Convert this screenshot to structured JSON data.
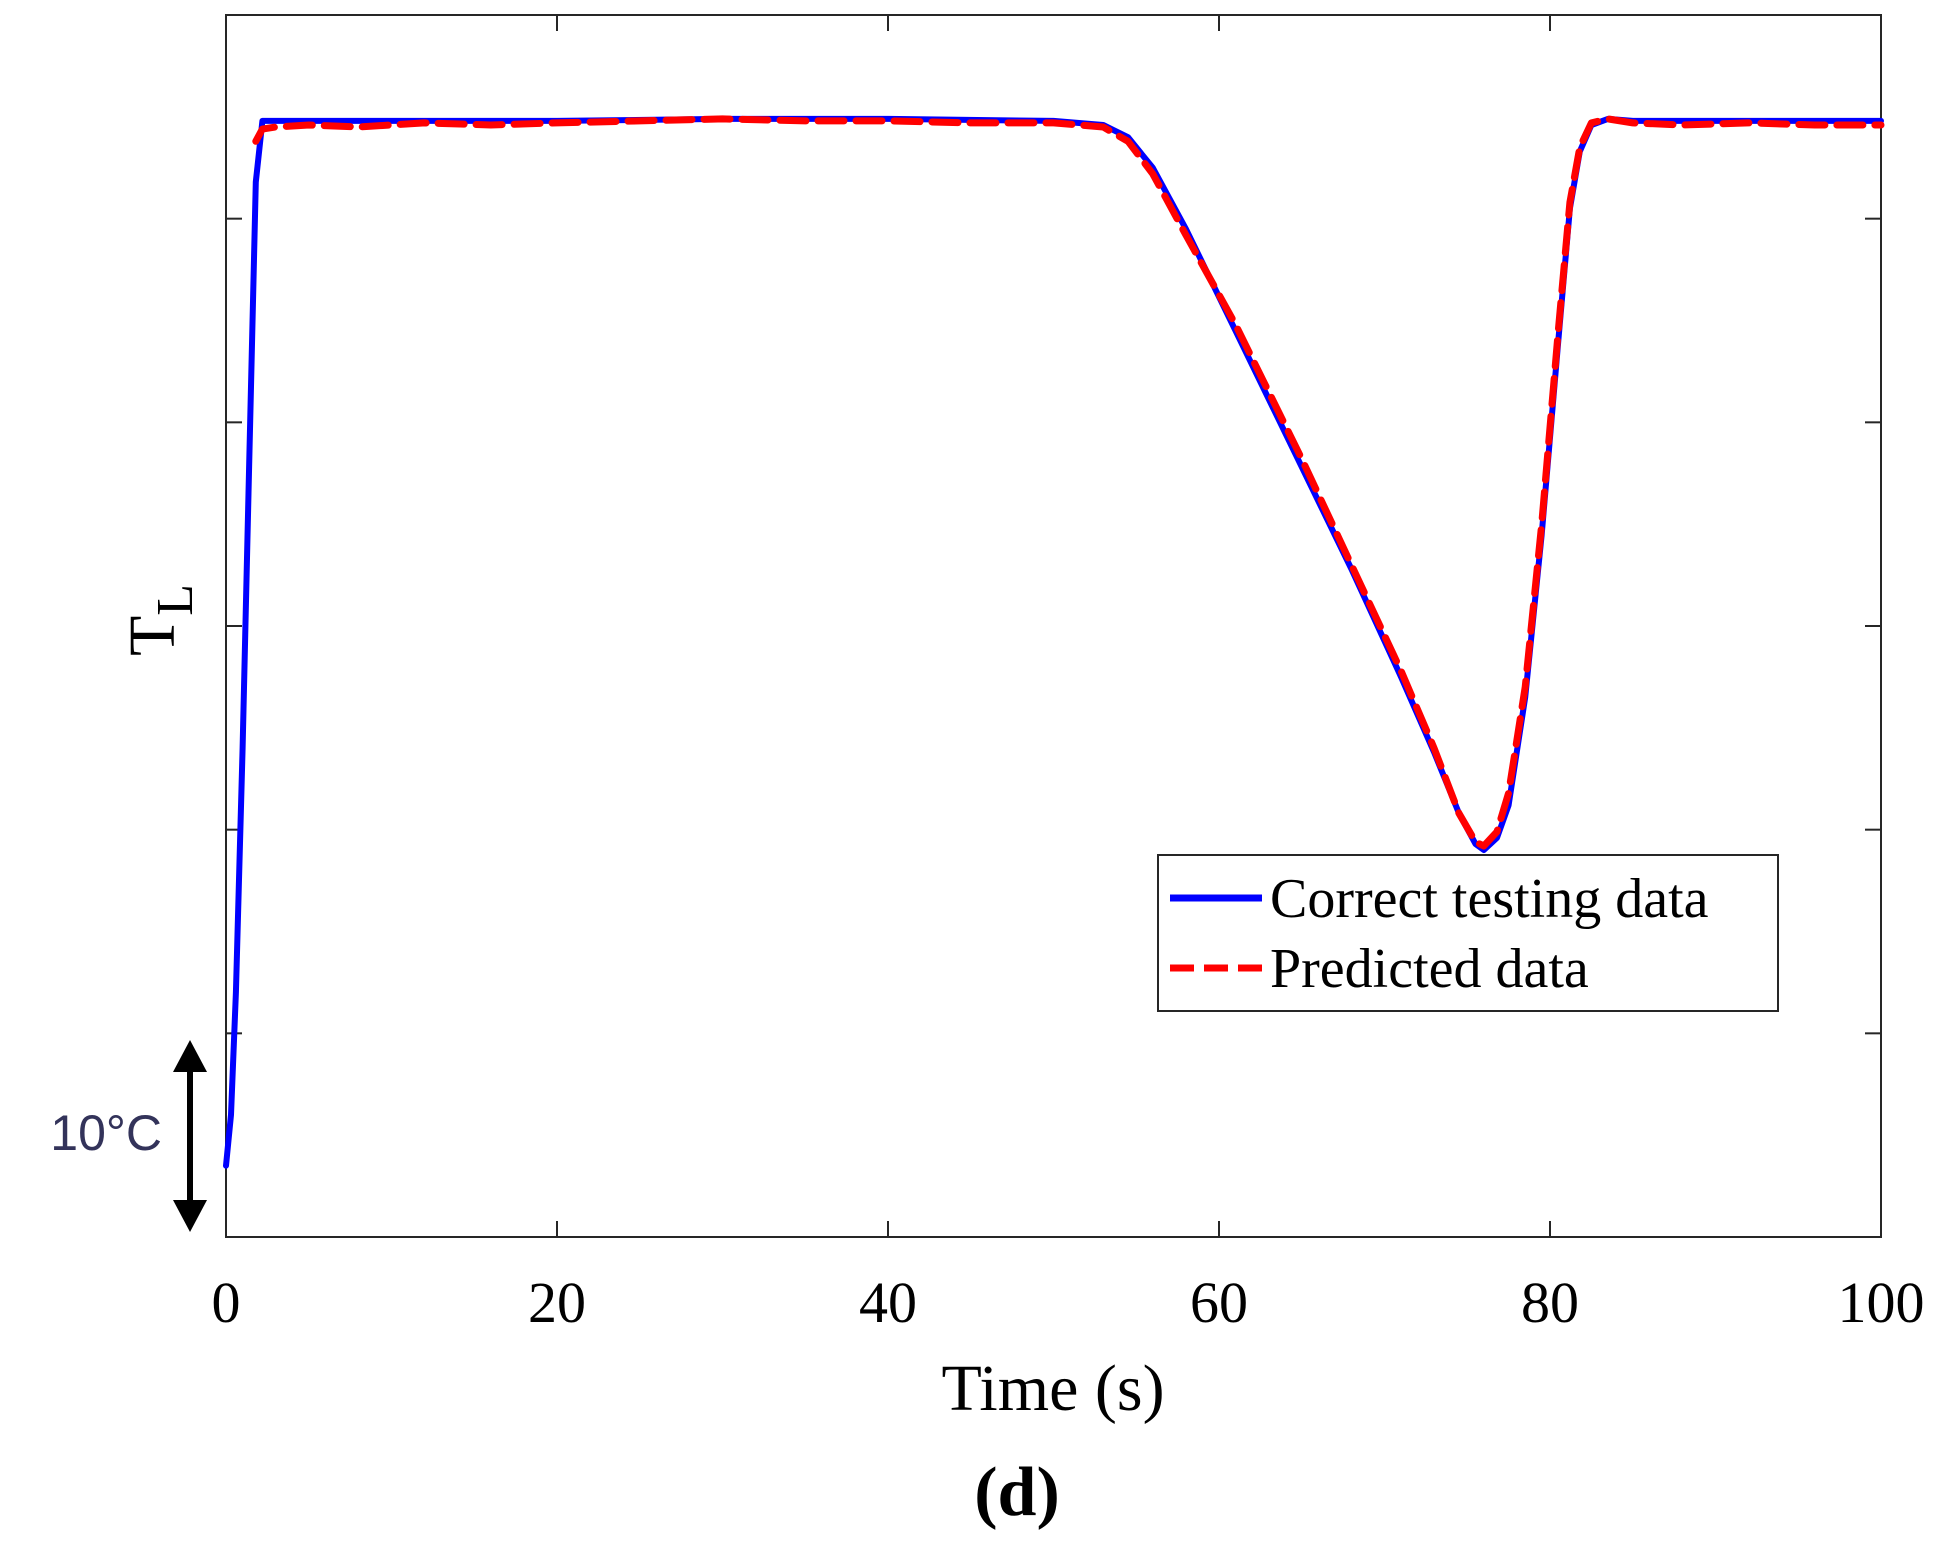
{
  "chart_data": {
    "type": "line",
    "xlabel": "Time (s)",
    "ylabel": "T",
    "ylabel_subscript": "L",
    "xlim": [
      0,
      100
    ],
    "xticks": [
      "0",
      "20",
      "40",
      "60",
      "80",
      "100"
    ],
    "ylim": [
      0,
      60
    ],
    "y_tick_count": 6,
    "scale_annotation": "10°C",
    "panel_label": "(d)",
    "legend": {
      "placement": "lower-right"
    },
    "series": [
      {
        "name": "Correct testing data",
        "color": "#0000ff",
        "style": "solid",
        "x": [
          0,
          0.3,
          0.6,
          1.0,
          1.4,
          1.8,
          2.2,
          3,
          10,
          20,
          30,
          40,
          50,
          53,
          54.5,
          56,
          58,
          61,
          65,
          68,
          71,
          73,
          74.5,
          75.5,
          76,
          76.8,
          77.5,
          78.5,
          79.5,
          80.5,
          81.2,
          81.8,
          82.5,
          83.5,
          85,
          90,
          95,
          100
        ],
        "y": [
          3.5,
          6,
          12,
          24,
          38,
          51.8,
          54.8,
          54.8,
          54.8,
          54.8,
          54.9,
          54.9,
          54.8,
          54.6,
          54.0,
          52.5,
          49.5,
          44.5,
          37.8,
          32.8,
          27.5,
          23.8,
          20.8,
          19.3,
          19.0,
          19.6,
          21.2,
          26.5,
          34.5,
          44.0,
          50.5,
          53.3,
          54.6,
          54.9,
          54.8,
          54.8,
          54.8,
          54.8
        ]
      },
      {
        "name": "Predicted data",
        "color": "#ff0000",
        "style": "dashed",
        "x": [
          1.8,
          2.2,
          3,
          5,
          8,
          12,
          16,
          20,
          25,
          30,
          35,
          40,
          45,
          50,
          53,
          54.5,
          56,
          58,
          61,
          65,
          68,
          71,
          73,
          74.5,
          75.5,
          76,
          76.8,
          77.5,
          78.5,
          79.5,
          80.5,
          81.2,
          81.8,
          82.5,
          83.5,
          85,
          88,
          92,
          96,
          100
        ],
        "y": [
          53.8,
          54.4,
          54.5,
          54.6,
          54.5,
          54.7,
          54.6,
          54.7,
          54.8,
          54.9,
          54.8,
          54.8,
          54.7,
          54.7,
          54.5,
          53.8,
          52.2,
          49.2,
          44.8,
          38.2,
          33.0,
          27.8,
          24.0,
          20.8,
          19.4,
          19.2,
          19.9,
          21.8,
          27.0,
          35.0,
          44.5,
          50.8,
          53.5,
          54.7,
          54.9,
          54.7,
          54.6,
          54.7,
          54.6,
          54.6
        ]
      }
    ]
  }
}
